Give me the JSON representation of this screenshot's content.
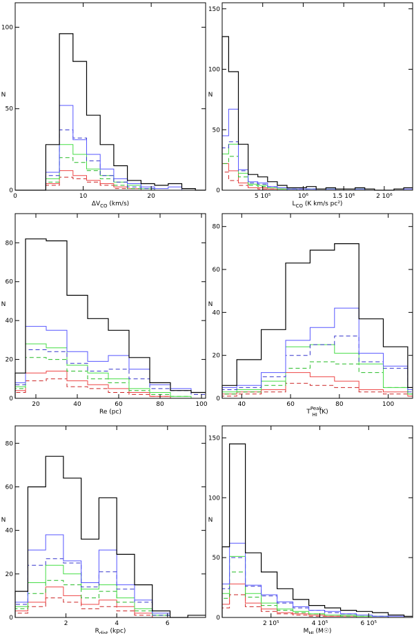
{
  "figure": {
    "ylabel_all": "N"
  },
  "chart_data": [
    {
      "type": "histogram",
      "xlabel": "ΔV",
      "xlabel_sub": "CO",
      "xlabel_tail": " (km/s)",
      "ylabel": "N",
      "xlim": [
        0,
        28
      ],
      "ylim": [
        0,
        115
      ],
      "xticks": [
        0,
        10,
        20
      ],
      "xticklabels": [
        "0",
        "10",
        "20"
      ],
      "yticks": [
        0,
        50,
        100
      ],
      "yticklabels": [
        "0",
        "50",
        "100"
      ],
      "bin_edges": [
        0,
        4.5,
        6.5,
        8.5,
        10.5,
        12.5,
        14.5,
        16.5,
        18.5,
        20.5,
        22.5,
        24.5,
        26.5,
        28
      ],
      "series": [
        {
          "name": "total",
          "color": "#000000",
          "dash": false,
          "values": [
            0,
            28,
            96,
            79,
            46,
            28,
            15,
            6,
            4,
            3,
            4,
            1,
            0
          ]
        },
        {
          "name": "blue",
          "color": "#5555ff",
          "dash": false,
          "values": [
            0,
            11,
            52,
            31,
            22,
            13,
            7,
            4,
            2,
            1,
            2,
            0,
            0
          ]
        },
        {
          "name": "blue-dashed",
          "color": "#3333cc",
          "dash": true,
          "values": [
            0,
            9,
            37,
            32,
            18,
            9,
            5,
            2,
            1,
            0,
            0,
            0,
            0
          ]
        },
        {
          "name": "green",
          "color": "#44dd44",
          "dash": false,
          "values": [
            0,
            7,
            28,
            22,
            13,
            9,
            5,
            3,
            1,
            0,
            0,
            0,
            0
          ]
        },
        {
          "name": "green-dashed",
          "color": "#22bb22",
          "dash": true,
          "values": [
            0,
            5,
            20,
            17,
            12,
            7,
            3,
            1,
            0,
            0,
            0,
            0,
            0
          ]
        },
        {
          "name": "red",
          "color": "#ee4444",
          "dash": false,
          "values": [
            0,
            4,
            12,
            9,
            6,
            4,
            2,
            1,
            0,
            0,
            0,
            0,
            0
          ]
        },
        {
          "name": "red-dashed",
          "color": "#cc2222",
          "dash": true,
          "values": [
            0,
            3,
            8,
            7,
            5,
            3,
            1,
            0,
            0,
            0,
            0,
            0,
            0
          ]
        }
      ]
    },
    {
      "type": "histogram",
      "xlabel": "L",
      "xlabel_sub": "CO",
      "xlabel_tail": " (K km/s pc²)",
      "ylabel": "N",
      "xlim": [
        0,
        2.35
      ],
      "ylim": [
        0,
        155
      ],
      "xticks": [
        0.5,
        1.0,
        1.5,
        2.0
      ],
      "xticklabels": [
        "5 10⁵",
        "10⁶",
        "1.5 10⁶",
        "2 10⁶"
      ],
      "yticks": [
        0,
        50,
        100,
        150
      ],
      "yticklabels": [
        "0",
        "50",
        "100",
        "150"
      ],
      "bin_edges": [
        0,
        0.08,
        0.2,
        0.32,
        0.44,
        0.56,
        0.68,
        0.8,
        0.92,
        1.04,
        1.16,
        1.28,
        1.4,
        1.52,
        1.64,
        1.76,
        1.88,
        2.0,
        2.12,
        2.24,
        2.35
      ],
      "series": [
        {
          "name": "total",
          "color": "#000000",
          "dash": false,
          "values": [
            127,
            98,
            38,
            13,
            11,
            7,
            4,
            2,
            2,
            3,
            1,
            2,
            1,
            1,
            2,
            1,
            0,
            0,
            1,
            2
          ]
        },
        {
          "name": "blue",
          "color": "#5555ff",
          "dash": false,
          "values": [
            45,
            67,
            17,
            7,
            6,
            3,
            2,
            1,
            1,
            1,
            0,
            1,
            0,
            0,
            1,
            0,
            0,
            0,
            0,
            1
          ]
        },
        {
          "name": "blue-dashed",
          "color": "#3333cc",
          "dash": true,
          "values": [
            35,
            40,
            16,
            6,
            5,
            3,
            2,
            1,
            1,
            1,
            0,
            0,
            0,
            0,
            0,
            0,
            0,
            0,
            0,
            0
          ]
        },
        {
          "name": "green",
          "color": "#44dd44",
          "dash": false,
          "values": [
            30,
            38,
            14,
            5,
            4,
            2,
            1,
            1,
            0,
            1,
            0,
            1,
            0,
            0,
            1,
            0,
            0,
            0,
            0,
            0
          ]
        },
        {
          "name": "green-dashed",
          "color": "#22bb22",
          "dash": true,
          "values": [
            22,
            28,
            11,
            4,
            3,
            2,
            1,
            0,
            0,
            0,
            0,
            0,
            0,
            0,
            0,
            0,
            0,
            0,
            0,
            0
          ]
        },
        {
          "name": "red",
          "color": "#ee4444",
          "dash": false,
          "values": [
            22,
            16,
            6,
            2,
            2,
            1,
            1,
            0,
            0,
            0,
            0,
            0,
            0,
            0,
            0,
            0,
            0,
            0,
            0,
            0
          ]
        },
        {
          "name": "red-dashed",
          "color": "#cc2222",
          "dash": true,
          "values": [
            15,
            8,
            4,
            2,
            1,
            1,
            0,
            0,
            0,
            0,
            0,
            0,
            0,
            0,
            0,
            0,
            0,
            0,
            0,
            0
          ]
        }
      ]
    },
    {
      "type": "histogram",
      "xlabel": "Re (pc)",
      "xlabel_sub": "",
      "xlabel_tail": "",
      "ylabel": "N",
      "xlim": [
        10,
        102
      ],
      "ylim": [
        0,
        95
      ],
      "xticks": [
        20,
        40,
        60,
        80,
        100
      ],
      "xticklabels": [
        "20",
        "40",
        "60",
        "80",
        "100"
      ],
      "yticks": [
        0,
        20,
        40,
        60,
        80
      ],
      "yticklabels": [
        "0",
        "20",
        "40",
        "60",
        "80"
      ],
      "bin_edges": [
        10,
        15,
        25,
        35,
        45,
        55,
        65,
        75,
        85,
        95,
        102
      ],
      "series": [
        {
          "name": "total",
          "color": "#000000",
          "dash": false,
          "values": [
            13,
            82,
            81,
            53,
            41,
            35,
            21,
            8,
            4,
            3
          ]
        },
        {
          "name": "blue",
          "color": "#5555ff",
          "dash": false,
          "values": [
            8,
            37,
            35,
            24,
            19,
            22,
            15,
            7,
            5,
            3
          ]
        },
        {
          "name": "blue-dashed",
          "color": "#3333cc",
          "dash": true,
          "values": [
            7,
            25,
            24,
            18,
            14,
            15,
            10,
            5,
            4,
            2
          ]
        },
        {
          "name": "green",
          "color": "#44dd44",
          "dash": false,
          "values": [
            6,
            28,
            26,
            17,
            13,
            10,
            5,
            3,
            1,
            0
          ]
        },
        {
          "name": "green-dashed",
          "color": "#22bb22",
          "dash": true,
          "values": [
            5,
            21,
            20,
            14,
            10,
            8,
            4,
            2,
            1,
            0
          ]
        },
        {
          "name": "red",
          "color": "#ee4444",
          "dash": false,
          "values": [
            4,
            13,
            14,
            9,
            7,
            5,
            3,
            1,
            0,
            0
          ]
        },
        {
          "name": "red-dashed",
          "color": "#cc2222",
          "dash": true,
          "values": [
            3,
            9,
            10,
            6,
            5,
            3,
            2,
            1,
            0,
            0
          ]
        }
      ]
    },
    {
      "type": "histogram",
      "xlabel": "T",
      "xlabel_sub": "HI",
      "xlabel_sup": "Peak",
      "xlabel_tail": " (K)",
      "ylabel": "N",
      "xlim": [
        32,
        110
      ],
      "ylim": [
        0,
        86
      ],
      "xticks": [
        40,
        60,
        80,
        100
      ],
      "xticklabels": [
        "40",
        "60",
        "80",
        "100"
      ],
      "yticks": [
        0,
        20,
        40,
        60,
        80
      ],
      "yticklabels": [
        "0",
        "20",
        "40",
        "60",
        "80"
      ],
      "bin_edges": [
        32,
        38,
        48,
        58,
        68,
        78,
        88,
        98,
        108,
        110
      ],
      "series": [
        {
          "name": "total",
          "color": "#000000",
          "dash": false,
          "values": [
            6,
            18,
            32,
            63,
            69,
            72,
            37,
            24,
            5
          ]
        },
        {
          "name": "blue",
          "color": "#5555ff",
          "dash": false,
          "values": [
            5,
            6,
            12,
            27,
            33,
            42,
            21,
            15,
            4
          ]
        },
        {
          "name": "blue-dashed",
          "color": "#3333cc",
          "dash": true,
          "values": [
            4,
            5,
            10,
            20,
            25,
            29,
            17,
            14,
            3
          ]
        },
        {
          "name": "green",
          "color": "#44dd44",
          "dash": false,
          "values": [
            3,
            4,
            8,
            24,
            25,
            21,
            16,
            5,
            2
          ]
        },
        {
          "name": "green-dashed",
          "color": "#22bb22",
          "dash": true,
          "values": [
            2,
            3,
            6,
            14,
            17,
            16,
            12,
            5,
            2
          ]
        },
        {
          "name": "red",
          "color": "#ee4444",
          "dash": false,
          "values": [
            2,
            3,
            4,
            12,
            10,
            8,
            4,
            3,
            1
          ]
        },
        {
          "name": "red-dashed",
          "color": "#cc2222",
          "dash": true,
          "values": [
            1,
            2,
            3,
            7,
            6,
            5,
            3,
            2,
            1
          ]
        }
      ]
    },
    {
      "type": "histogram",
      "xlabel": "R",
      "xlabel_sub": "dist",
      "xlabel_tail": " (kpc)",
      "ylabel": "N",
      "xlim": [
        0,
        7.5
      ],
      "ylim": [
        0,
        88
      ],
      "xticks": [
        2,
        4,
        6
      ],
      "xticklabels": [
        "2",
        "4",
        "6"
      ],
      "yticks": [
        0,
        20,
        40,
        60,
        80
      ],
      "yticklabels": [
        "0",
        "20",
        "40",
        "60",
        "80"
      ],
      "bin_edges": [
        0,
        0.5,
        1.2,
        1.9,
        2.6,
        3.3,
        4.0,
        4.7,
        5.4,
        6.1,
        6.8,
        7.5
      ],
      "series": [
        {
          "name": "total",
          "color": "#000000",
          "dash": false,
          "values": [
            12,
            60,
            74,
            64,
            36,
            55,
            29,
            15,
            3,
            0,
            1
          ]
        },
        {
          "name": "blue",
          "color": "#5555ff",
          "dash": false,
          "values": [
            7,
            31,
            38,
            26,
            16,
            31,
            15,
            8,
            2,
            0,
            0
          ]
        },
        {
          "name": "blue-dashed",
          "color": "#3333cc",
          "dash": true,
          "values": [
            6,
            24,
            27,
            25,
            14,
            21,
            13,
            7,
            1,
            0,
            0
          ]
        },
        {
          "name": "green",
          "color": "#44dd44",
          "dash": false,
          "values": [
            5,
            16,
            24,
            20,
            13,
            15,
            9,
            4,
            1,
            0,
            0
          ]
        },
        {
          "name": "green-dashed",
          "color": "#22bb22",
          "dash": true,
          "values": [
            4,
            11,
            17,
            15,
            9,
            12,
            7,
            3,
            1,
            0,
            0
          ]
        },
        {
          "name": "red",
          "color": "#ee4444",
          "dash": false,
          "values": [
            3,
            7,
            14,
            10,
            6,
            8,
            5,
            2,
            0,
            0,
            0
          ]
        },
        {
          "name": "red-dashed",
          "color": "#cc2222",
          "dash": true,
          "values": [
            2,
            5,
            9,
            7,
            4,
            5,
            3,
            1,
            0,
            0,
            0
          ]
        }
      ]
    },
    {
      "type": "histogram",
      "xlabel": "M",
      "xlabel_sub": "HI",
      "xlabel_tail": " (M☉)",
      "ylabel": "N",
      "xlim": [
        0,
        7.8
      ],
      "ylim": [
        0,
        160
      ],
      "xticks": [
        2,
        4,
        6
      ],
      "xticklabels": [
        "2 10⁵",
        "4 10⁵",
        "6 10⁵"
      ],
      "yticks": [
        0,
        50,
        100,
        150
      ],
      "yticklabels": [
        "0",
        "50",
        "100",
        "150"
      ],
      "bin_edges": [
        0,
        0.3,
        0.95,
        1.6,
        2.25,
        2.9,
        3.55,
        4.2,
        4.85,
        5.5,
        6.15,
        6.8,
        7.45,
        7.8
      ],
      "series": [
        {
          "name": "total",
          "color": "#000000",
          "dash": false,
          "values": [
            59,
            145,
            54,
            38,
            24,
            15,
            10,
            8,
            6,
            5,
            4,
            2,
            1
          ]
        },
        {
          "name": "blue",
          "color": "#5555ff",
          "dash": false,
          "values": [
            28,
            62,
            27,
            19,
            13,
            9,
            6,
            5,
            3,
            2,
            1,
            1,
            0
          ]
        },
        {
          "name": "blue-dashed",
          "color": "#3333cc",
          "dash": true,
          "values": [
            24,
            50,
            26,
            18,
            12,
            8,
            6,
            4,
            3,
            2,
            1,
            0,
            0
          ]
        },
        {
          "name": "green",
          "color": "#44dd44",
          "dash": false,
          "values": [
            20,
            51,
            20,
            12,
            7,
            5,
            3,
            2,
            2,
            1,
            1,
            0,
            0
          ]
        },
        {
          "name": "green-dashed",
          "color": "#22bb22",
          "dash": true,
          "values": [
            16,
            38,
            17,
            10,
            6,
            4,
            3,
            2,
            1,
            1,
            0,
            0,
            0
          ]
        },
        {
          "name": "red",
          "color": "#ee4444",
          "dash": false,
          "values": [
            11,
            28,
            12,
            7,
            4,
            3,
            2,
            1,
            1,
            0,
            0,
            0,
            0
          ]
        },
        {
          "name": "red-dashed",
          "color": "#cc2222",
          "dash": true,
          "values": [
            8,
            19,
            9,
            5,
            3,
            2,
            1,
            1,
            0,
            0,
            0,
            0,
            0
          ]
        }
      ]
    }
  ]
}
